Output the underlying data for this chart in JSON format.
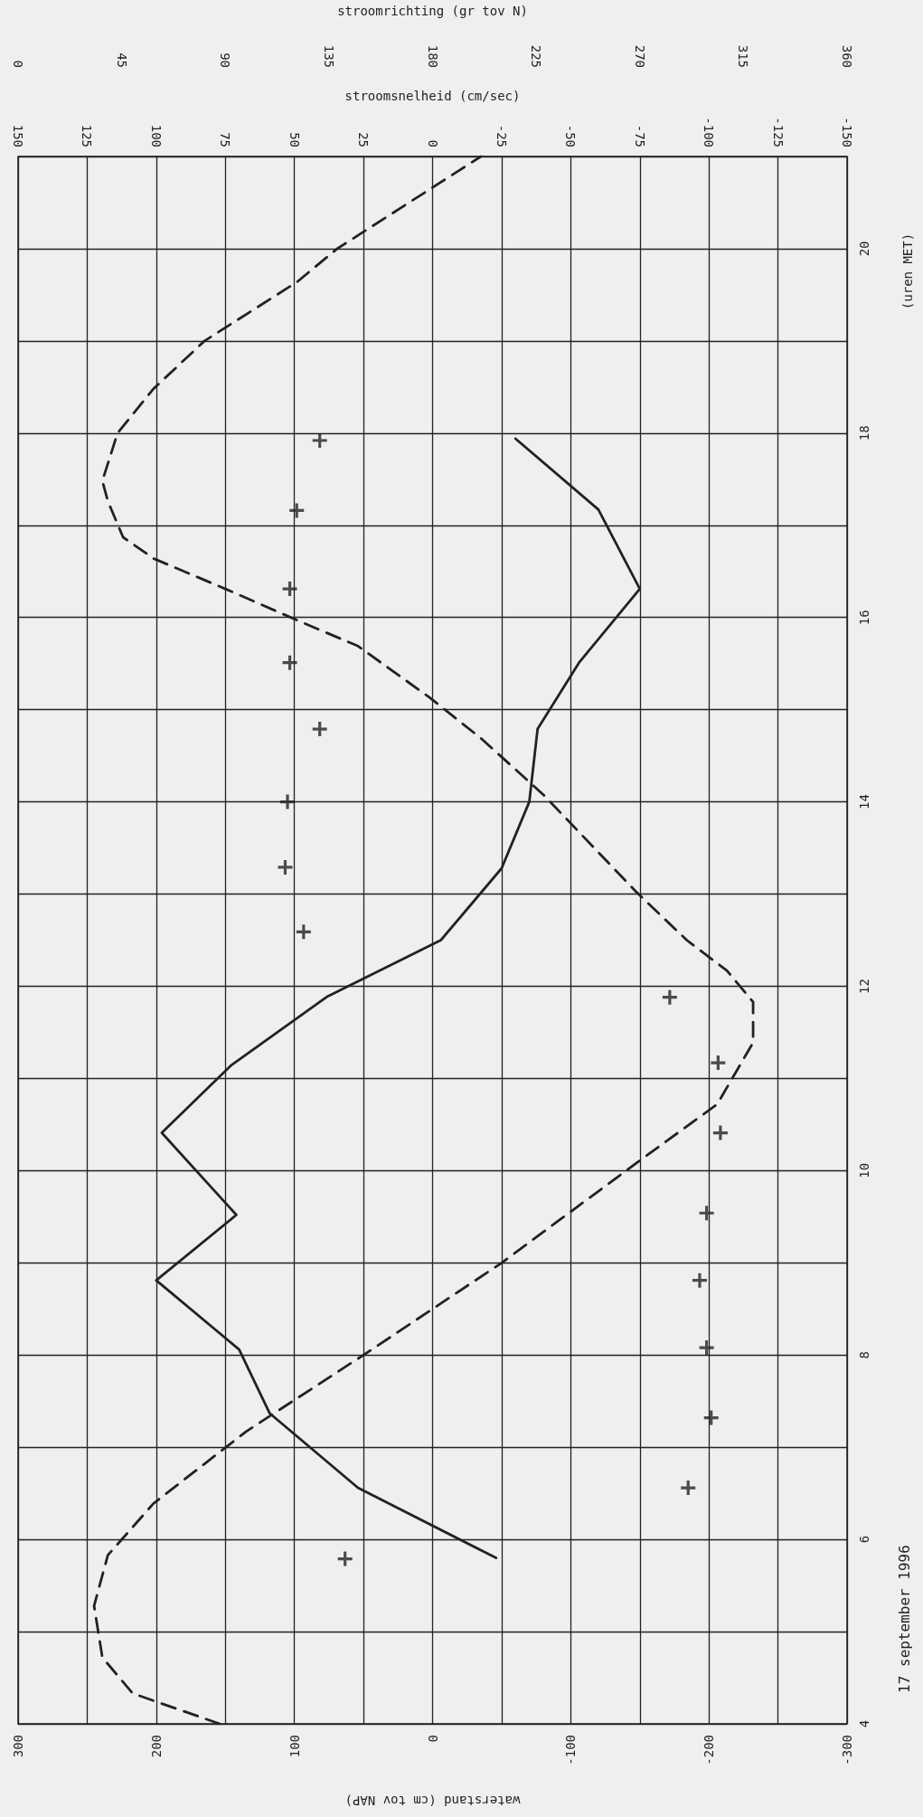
{
  "chart_data": [
    {
      "type": "line",
      "annotations": [
        "17 september 1996"
      ],
      "ylabel": "(uren MET)",
      "xlabel": "waterstand (cm tov NAP)",
      "x2label": "stroomsnelheid (cm/sec)",
      "ylim": [
        4,
        21
      ],
      "yticks": [
        4,
        {
          "value": 5,
          "label": null
        },
        6,
        {
          "value": 7,
          "label": null
        },
        8,
        {
          "value": 9,
          "label": null
        },
        10,
        {
          "value": 11,
          "label": null
        },
        12,
        {
          "value": 13,
          "label": null
        },
        14,
        {
          "value": 15,
          "label": null
        },
        16,
        {
          "value": 17,
          "label": null
        },
        18,
        {
          "value": 19,
          "label": null
        },
        20,
        {
          "value": 21,
          "label": null
        }
      ],
      "xlim": [
        300,
        -300
      ],
      "xticks": [
        300,
        {
          "value": 250,
          "label": null
        },
        200,
        {
          "value": 150,
          "label": null
        },
        100,
        {
          "value": 50,
          "label": null
        },
        0,
        {
          "value": -50,
          "label": null
        },
        -100,
        {
          "value": -150,
          "label": null
        },
        -200,
        {
          "value": -250,
          "label": null
        },
        -300
      ],
      "x2lim": [
        150,
        -150
      ],
      "x2ticks": [
        150,
        125,
        100,
        75,
        50,
        25,
        0,
        -25,
        -50,
        -75,
        -100,
        -125,
        -150
      ],
      "grid": true,
      "series": [
        {
          "marker": "none",
          "line_style": "dashed",
          "color": "#222222",
          "x": [
            154,
            217,
            239,
            245,
            235,
            202,
            135,
            50,
            -50,
            -150,
            -206,
            -232,
            -232,
            -213,
            -184,
            -147,
            -80,
            -35,
            2,
            54,
            98,
            150,
            202,
            224,
            235,
            239,
            228,
            202,
            165,
            98,
            69,
            -35
          ],
          "values": [
            4,
            4.33,
            4.72,
            5.28,
            5.83,
            6.39,
            7.17,
            8,
            9,
            10.11,
            10.72,
            11.39,
            11.83,
            12.17,
            12.5,
            13.03,
            14.08,
            14.69,
            15.13,
            15.69,
            15.97,
            16.31,
            16.64,
            16.87,
            17.26,
            17.48,
            18,
            18.48,
            19,
            19.64,
            20,
            21
          ]
        },
        {
          "marker": "none",
          "line_style": "solid",
          "axis": "x2",
          "color": "#222222",
          "x": [
            -23,
            27,
            59,
            70,
            100,
            71,
            98,
            73,
            38,
            -3,
            -25,
            -35,
            -38,
            -53,
            -75,
            -60,
            -30
          ],
          "values": [
            5.8,
            6.56,
            7.37,
            8.06,
            8.81,
            9.52,
            10.41,
            11.14,
            11.89,
            12.5,
            13.28,
            14,
            14.79,
            15.51,
            16.31,
            17.17,
            17.94
          ]
        }
      ]
    },
    {
      "type": "scatter",
      "xlabel": "stroomrichting (gr tov N)",
      "xlim": [
        0,
        360
      ],
      "xticks": [
        0,
        45,
        90,
        135,
        180,
        225,
        270,
        315,
        360
      ],
      "ylim": [
        4,
        21
      ],
      "tick_labels": "x",
      "series": [
        {
          "marker": "cross",
          "color": "#222222",
          "x": [
            142,
            291,
            301,
            299,
            296,
            299,
            305,
            304,
            283,
            124,
            116,
            117,
            131,
            118,
            118,
            121,
            131
          ],
          "values": [
            5.79,
            6.56,
            7.32,
            8.08,
            8.81,
            9.54,
            10.41,
            11.17,
            11.88,
            12.59,
            13.29,
            14,
            14.79,
            15.51,
            16.31,
            17.16,
            17.92
          ]
        }
      ]
    }
  ]
}
